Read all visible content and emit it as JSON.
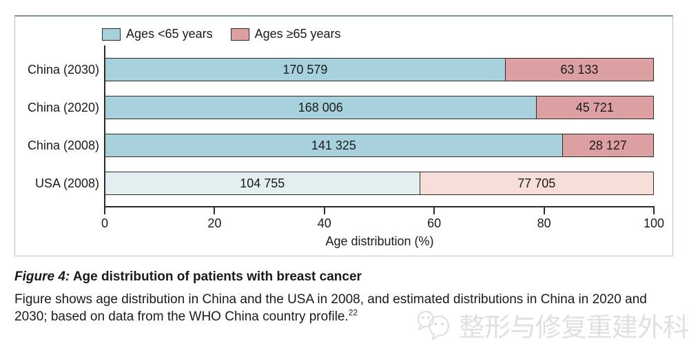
{
  "chart_data": {
    "type": "bar",
    "orientation": "horizontal",
    "stacked": true,
    "grid": false,
    "categories": [
      "China (2030)",
      "China (2020)",
      "China (2008)",
      "USA (2008)"
    ],
    "series": [
      {
        "name": "Ages <65 years",
        "values": [
          170579,
          168006,
          141325,
          104755
        ],
        "value_labels": [
          "170 579",
          "168 006",
          "141 325",
          "104 755"
        ]
      },
      {
        "name": "Ages ≥65 years",
        "values": [
          63133,
          45721,
          28127,
          77705
        ],
        "value_labels": [
          "63 133",
          "45 721",
          "28 127",
          "77 705"
        ]
      }
    ],
    "percentages": [
      [
        73.0,
        27.0
      ],
      [
        78.6,
        21.4
      ],
      [
        83.4,
        16.6
      ],
      [
        57.4,
        42.6
      ]
    ],
    "row_colors": [
      [
        "#a8d1de",
        "#dda0a2"
      ],
      [
        "#a8d1de",
        "#dda0a2"
      ],
      [
        "#a8d1de",
        "#dda0a2"
      ],
      [
        "#e3eef0",
        "#f8ded8"
      ]
    ],
    "xlabel": "Age distribution (%)",
    "x_ticks": [
      "0",
      "20",
      "40",
      "60",
      "80",
      "100"
    ],
    "xlim": [
      0,
      100
    ],
    "legend_position": "top-left"
  },
  "caption": {
    "figure_label": "Figure 4:",
    "title": "Age distribution of patients with breast cancer",
    "body_lines": [
      "Figure shows age distribution in China and the USA in 2008, and estimated distributions in China in 2020 and",
      "2030; based on data from the WHO China country profile."
    ],
    "reference_superscript": "22"
  },
  "watermark": {
    "icon": "wechat-logo-icon",
    "text": "整形与修复重建外科",
    "color": "#e0e0e0"
  },
  "colors": {
    "bar_border": "#2d2a26",
    "axis": "#2d2a26",
    "panel_border": "#b3c6c1",
    "panel_border_top": "#74938c",
    "text": "#1a1a1a"
  }
}
